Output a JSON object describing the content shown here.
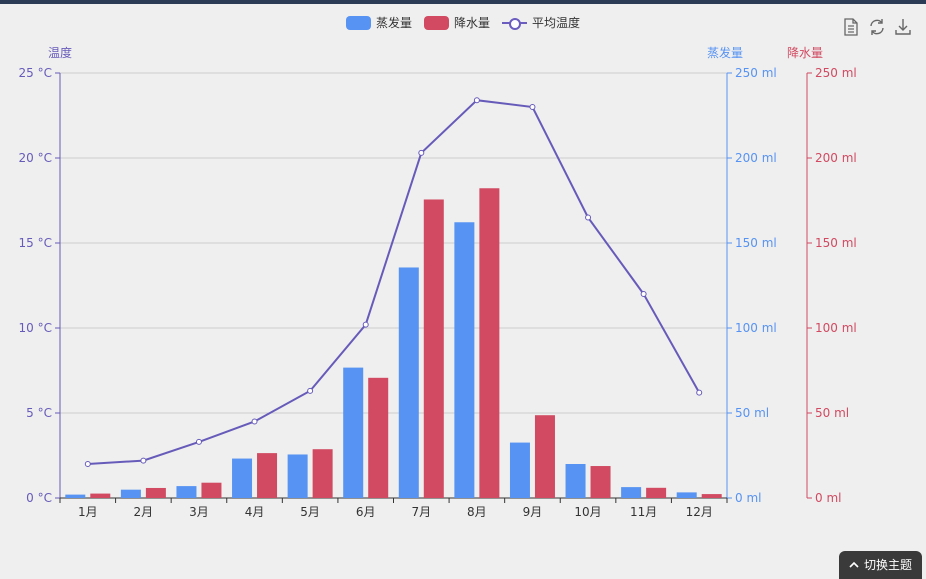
{
  "toolbox": {
    "icons": [
      "data-view-icon",
      "restore-icon",
      "save-image-icon"
    ]
  },
  "theme_button": {
    "label": "切换主题",
    "icon": "chevron-up-icon"
  },
  "chart_data": {
    "type": "bar",
    "categories": [
      "1月",
      "2月",
      "3月",
      "4月",
      "5月",
      "6月",
      "7月",
      "8月",
      "9月",
      "10月",
      "11月",
      "12月"
    ],
    "series": [
      {
        "name": "蒸发量",
        "type": "bar",
        "color": "#5793f3",
        "axis": "蒸发量",
        "values": [
          2.0,
          4.9,
          7.0,
          23.2,
          25.6,
          76.7,
          135.6,
          162.2,
          32.6,
          20.0,
          6.4,
          3.3
        ]
      },
      {
        "name": "降水量",
        "type": "bar",
        "color": "#d14a61",
        "axis": "降水量",
        "values": [
          2.6,
          5.9,
          9.0,
          26.4,
          28.7,
          70.7,
          175.6,
          182.2,
          48.7,
          18.8,
          6.0,
          2.3
        ]
      },
      {
        "name": "平均温度",
        "type": "line",
        "color": "#675bba",
        "axis": "温度",
        "values": [
          2.0,
          2.2,
          3.3,
          4.5,
          6.3,
          10.2,
          20.3,
          23.4,
          23.0,
          16.5,
          12.0,
          6.2
        ]
      }
    ],
    "y_axes": [
      {
        "name": "温度",
        "color": "#675bba",
        "min": 0,
        "max": 25,
        "ticks": [
          "0 °C",
          "5 °C",
          "10 °C",
          "15 °C",
          "20 °C",
          "25 °C"
        ],
        "position": "left"
      },
      {
        "name": "蒸发量",
        "color": "#5793f3",
        "min": 0,
        "max": 250,
        "ticks": [
          "0 ml",
          "50 ml",
          "100 ml",
          "150 ml",
          "200 ml",
          "250 ml"
        ],
        "position": "right"
      },
      {
        "name": "降水量",
        "color": "#d14a61",
        "min": 0,
        "max": 250,
        "ticks": [
          "0 ml",
          "50 ml",
          "100 ml",
          "150 ml",
          "200 ml",
          "250 ml"
        ],
        "position": "right-offset"
      }
    ],
    "grid": true,
    "legend_position": "top-center"
  }
}
